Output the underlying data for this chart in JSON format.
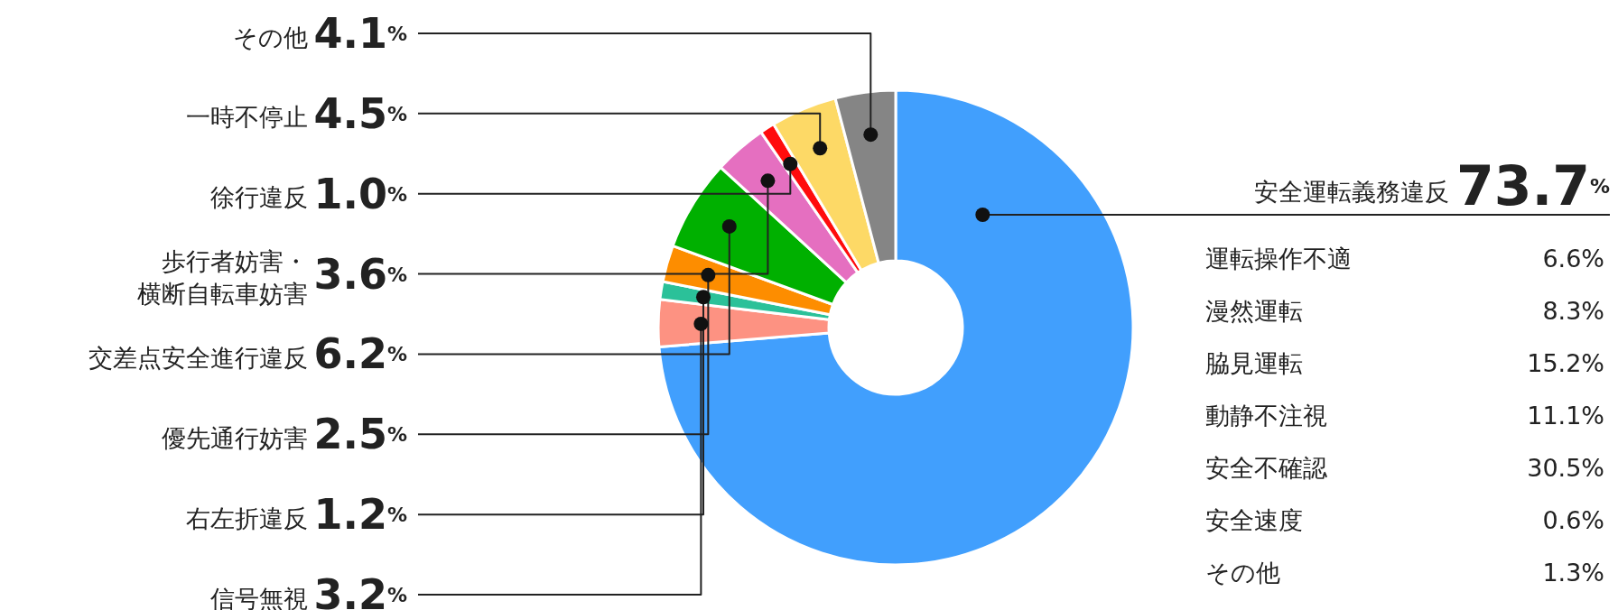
{
  "chart_data": {
    "type": "donut",
    "categories": [
      "安全運転義務違反",
      "信号無視",
      "右左折違反",
      "優先通行妨害",
      "交差点安全進行違反",
      "歩行者妨害・横断自転車妨害",
      "徐行違反",
      "一時不停止",
      "その他"
    ],
    "values": [
      73.7,
      3.2,
      1.2,
      2.5,
      6.2,
      3.6,
      1.0,
      4.5,
      4.1
    ],
    "value_labels": [
      "73.7%",
      "3.2%",
      "1.2%",
      "2.5%",
      "6.2%",
      "3.6%",
      "1.0%",
      "4.5%",
      "4.1%"
    ],
    "colors": [
      "#419ffd",
      "#fd9282",
      "#2bc199",
      "#fd8d00",
      "#00b000",
      "#e56fc0",
      "#ff0c0c",
      "#fdd966",
      "#858585"
    ],
    "annotations": [
      "運転操作不適",
      "6.6%",
      "漫然運転",
      "8.3%",
      "脇見運転",
      "15.2%",
      "動静不注視",
      "11.1%",
      "安全不確認",
      "30.5%",
      "安全速度",
      "0.6%",
      "その他",
      "1.3%"
    ]
  }
}
